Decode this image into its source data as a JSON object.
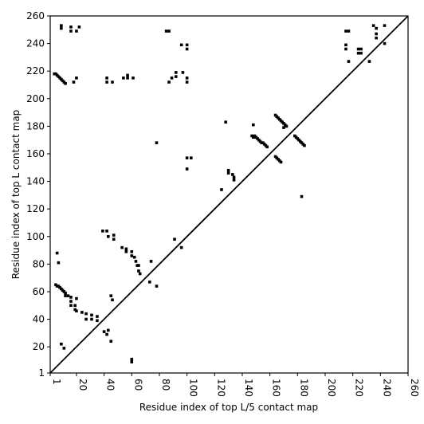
{
  "chart_data": {
    "type": "scatter",
    "xlabel": "Residue index of top L/5 contact map",
    "ylabel": "Residue index of top L contact map",
    "xlim": [
      1,
      260
    ],
    "ylim": [
      1,
      260
    ],
    "xticks": [
      1,
      20,
      40,
      60,
      80,
      100,
      120,
      140,
      160,
      180,
      200,
      220,
      240,
      260
    ],
    "yticks": [
      1,
      20,
      40,
      60,
      80,
      100,
      120,
      140,
      160,
      180,
      200,
      220,
      240,
      260
    ],
    "series": [
      {
        "type": "scatter",
        "color": "#000000",
        "x": [
          4,
          5,
          6,
          7,
          8,
          9,
          10,
          11,
          12,
          5,
          6,
          7,
          8,
          9,
          10,
          11,
          12,
          12,
          14,
          16,
          16,
          16,
          19,
          19,
          20,
          20,
          24,
          27,
          27,
          31,
          31,
          35,
          35,
          40,
          42,
          43,
          45,
          9,
          11,
          6,
          7,
          39,
          42,
          43,
          47,
          47,
          45,
          46,
          53,
          56,
          56,
          60,
          60,
          62,
          63,
          64,
          65,
          65,
          66,
          74,
          73,
          78,
          91,
          96,
          60,
          60,
          42,
          42,
          46,
          54,
          57,
          61,
          57,
          18,
          20,
          92,
          89,
          87,
          92,
          97,
          100,
          100,
          85,
          87,
          96,
          100,
          100,
          9,
          9,
          16,
          16,
          20,
          22,
          215,
          217,
          215,
          215,
          217,
          224,
          224,
          226,
          226,
          232,
          235,
          237,
          237,
          237,
          243,
          243,
          78,
          100,
          103,
          100,
          125,
          128,
          130,
          130,
          133,
          134,
          134,
          148,
          147,
          148,
          149,
          150,
          151,
          152,
          153,
          154,
          155,
          156,
          157,
          158,
          164,
          165,
          166,
          167,
          168,
          169,
          170,
          171,
          172,
          170,
          164,
          165,
          166,
          167,
          168,
          178,
          179,
          180,
          181,
          182,
          183,
          184,
          185,
          183
        ],
        "values": [
          218,
          218,
          217,
          216,
          215,
          214,
          213,
          212,
          211,
          65,
          64,
          64,
          63,
          62,
          61,
          60,
          59,
          57,
          57,
          56,
          53,
          50,
          50,
          47,
          46,
          55,
          45,
          44,
          40,
          43,
          40,
          42,
          39,
          31,
          29,
          32,
          24,
          22,
          19,
          88,
          81,
          104,
          104,
          100,
          101,
          98,
          57,
          54,
          92,
          91,
          89,
          89,
          86,
          85,
          82,
          79,
          79,
          75,
          73,
          82,
          67,
          64,
          98,
          92,
          11,
          9,
          215,
          212,
          212,
          215,
          215,
          215,
          217,
          212,
          215,
          219,
          215,
          212,
          216,
          219,
          215,
          212,
          249,
          249,
          239,
          239,
          236,
          253,
          251,
          252,
          249,
          249,
          252,
          249,
          249,
          239,
          236,
          227,
          236,
          233,
          236,
          233,
          227,
          253,
          251,
          247,
          244,
          253,
          240,
          168,
          157,
          157,
          149,
          134,
          183,
          148,
          146,
          145,
          143,
          141,
          181,
          173,
          172,
          173,
          172,
          171,
          170,
          169,
          168,
          168,
          167,
          166,
          165,
          188,
          187,
          186,
          185,
          184,
          183,
          182,
          181,
          180,
          179,
          158,
          157,
          156,
          155,
          154,
          173,
          172,
          171,
          170,
          169,
          168,
          167,
          166,
          129
        ]
      },
      {
        "type": "line",
        "color": "#000000",
        "x": [
          1,
          260
        ],
        "values": [
          1,
          260
        ]
      }
    ]
  }
}
